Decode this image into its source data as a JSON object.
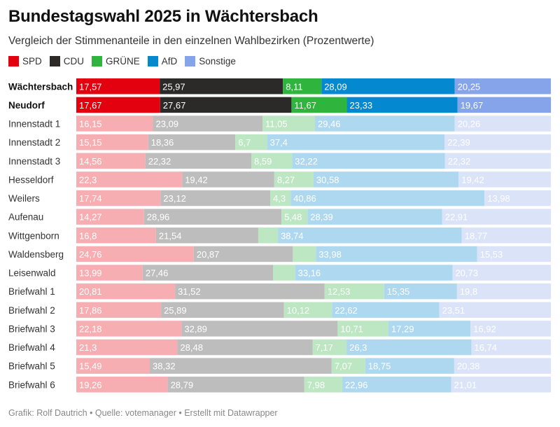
{
  "header": {
    "title": "Bundestagswahl 2025 in Wächtersbach",
    "subtitle": "Vergleich der Stimmenanteile in den einzelnen Wahlbezirken (Prozentwerte)"
  },
  "legend": [
    {
      "label": "SPD",
      "color": "#e3000f"
    },
    {
      "label": "CDU",
      "color": "#2b2a29"
    },
    {
      "label": "GRÜNE",
      "color": "#2fb43e"
    },
    {
      "label": "AfD",
      "color": "#0489d0"
    },
    {
      "label": "Sonstige",
      "color": "#85a4ea"
    }
  ],
  "chart_data": {
    "type": "bar",
    "orientation": "horizontal",
    "stacked": true,
    "title": "Bundestagswahl 2025 in Wächtersbach",
    "subtitle": "Vergleich der Stimmenanteile in den einzelnen Wahlbezirken (Prozentwerte)",
    "xlabel": "",
    "ylabel": "",
    "xlim": [
      0,
      100
    ],
    "grid": false,
    "legend_position": "top-left",
    "highlighted_categories": [
      "Wächtersbach",
      "Neudorf"
    ],
    "categories": [
      "Wächtersbach",
      "Neudorf",
      "Innenstadt 1",
      "Innenstadt 2",
      "Innenstadt 3",
      "Hesseldorf",
      "Weilers",
      "Aufenau",
      "Wittgenborn",
      "Waldensberg",
      "Leisenwald",
      "Briefwahl 1",
      "Briefwahl 2",
      "Briefwahl 3",
      "Briefwahl 4",
      "Briefwahl 5",
      "Briefwahl 6"
    ],
    "series": [
      {
        "name": "SPD",
        "color": "#e3000f",
        "faded_color": "#f7aeb2",
        "values": [
          17.57,
          17.67,
          16.15,
          15.15,
          14.56,
          22.3,
          17.74,
          14.27,
          16.8,
          24.76,
          13.99,
          20.81,
          17.86,
          22.18,
          21.3,
          15.49,
          19.26
        ],
        "labels": [
          "17,57",
          "17,67",
          "16,15",
          "15,15",
          "14,56",
          "22,3",
          "17,74",
          "14,27",
          "16,8",
          "24,76",
          "13,99",
          "20,81",
          "17,86",
          "22,18",
          "21,3",
          "15,49",
          "19,26"
        ]
      },
      {
        "name": "CDU",
        "color": "#2b2a29",
        "faded_color": "#bdbdbd",
        "values": [
          25.97,
          27.67,
          23.09,
          18.36,
          22.32,
          19.42,
          23.12,
          28.96,
          21.54,
          20.87,
          27.46,
          31.52,
          25.89,
          32.89,
          28.48,
          38.32,
          28.79
        ],
        "labels": [
          "25,97",
          "27,67",
          "23,09",
          "18,36",
          "22,32",
          "19,42",
          "23,12",
          "28,96",
          "21,54",
          "20,87",
          "27,46",
          "31,52",
          "25,89",
          "32,89",
          "28,48",
          "38,32",
          "28,79"
        ]
      },
      {
        "name": "GRÜNE",
        "color": "#2fb43e",
        "faded_color": "#bde6c2",
        "values": [
          8.11,
          11.67,
          11.05,
          6.7,
          8.59,
          8.27,
          4.3,
          5.48,
          4.15,
          4.86,
          4.66,
          12.53,
          10.12,
          10.71,
          7.17,
          7.07,
          7.98
        ],
        "labels": [
          "8,11",
          "11,67",
          "11,05",
          "6,7",
          "8,59",
          "8,27",
          "4,3",
          "5,48",
          "",
          "",
          "",
          "12,53",
          "10,12",
          "10,71",
          "7,17",
          "7,07",
          "7,98"
        ]
      },
      {
        "name": "AfD",
        "color": "#0489d0",
        "faded_color": "#add8ef",
        "values": [
          28.09,
          23.33,
          29.46,
          37.4,
          32.22,
          30.58,
          40.86,
          28.39,
          38.74,
          33.98,
          33.16,
          15.35,
          22.62,
          17.29,
          26.3,
          18.75,
          22.96
        ],
        "labels": [
          "28,09",
          "23,33",
          "29,46",
          "37,4",
          "32,22",
          "30,58",
          "40,86",
          "28,39",
          "38,74",
          "33,98",
          "33,16",
          "15,35",
          "22,62",
          "17,29",
          "26,3",
          "18,75",
          "22,96"
        ]
      },
      {
        "name": "Sonstige",
        "color": "#85a4ea",
        "faded_color": "#dbe3f8",
        "values": [
          20.25,
          19.67,
          20.26,
          22.39,
          22.32,
          19.42,
          13.98,
          22.91,
          18.77,
          15.53,
          20.73,
          19.8,
          23.51,
          16.92,
          16.74,
          20.38,
          21.01
        ],
        "labels": [
          "20,25",
          "19,67",
          "20,26",
          "22,39",
          "22,32",
          "19,42",
          "13,98",
          "22,91",
          "18,77",
          "15,53",
          "20,73",
          "19,8",
          "23,51",
          "16,92",
          "16,74",
          "20,38",
          "21,01"
        ]
      }
    ]
  },
  "footer": {
    "text": "Grafik: Rolf Dautrich • Quelle: votemanager • Erstellt mit Datawrapper"
  }
}
